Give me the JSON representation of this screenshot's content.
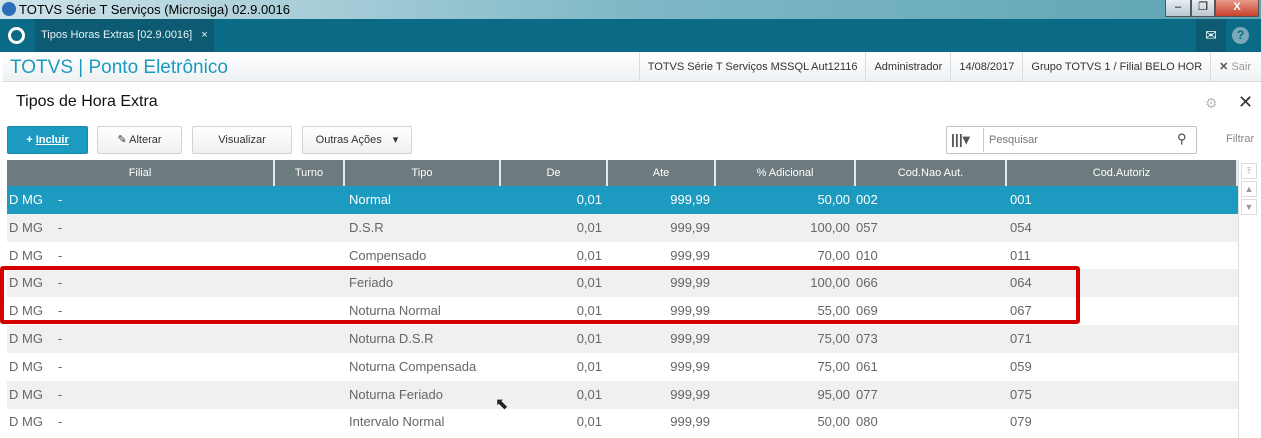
{
  "window": {
    "title": "TOTVS Série T Serviços (Microsiga) 02.9.0016",
    "minimize": "–",
    "restore": "❐",
    "close": "X"
  },
  "appbar": {
    "tab_label": "Tipos Horas Extras [02.9.0016]",
    "tab_close": "×",
    "mail_icon": "✉",
    "help_icon": "?"
  },
  "module": {
    "title": "TOTVS | Ponto Eletrônico",
    "environment": "TOTVS Série T Serviços MSSQL Aut12116",
    "user": "Administrador",
    "date": "14/08/2017",
    "branch": "Grupo TOTVS 1 / Filial BELO HOR",
    "exit": "Sair"
  },
  "page": {
    "title": "Tipos de Hora Extra"
  },
  "toolbar": {
    "incluir": "Incluir",
    "alterar": "Alterar",
    "visualizar": "Visualizar",
    "outras": "Outras Ações",
    "search_placeholder": "Pesquisar",
    "filtrar": "Filtrar"
  },
  "table": {
    "columns": [
      "Filial",
      "Turno",
      "Tipo",
      "De",
      "Ate",
      "% Adicional",
      "Cod.Nao Aut.",
      "Cod.Autoriz"
    ],
    "rows": [
      {
        "filial": "D MG",
        "turno": "-",
        "tipo": "Normal",
        "de": "0,01",
        "ate": "999,99",
        "adicional": "50,00",
        "nao_aut": "002",
        "autoriz": "001"
      },
      {
        "filial": "D MG",
        "turno": "-",
        "tipo": "D.S.R",
        "de": "0,01",
        "ate": "999,99",
        "adicional": "100,00",
        "nao_aut": "057",
        "autoriz": "054"
      },
      {
        "filial": "D MG",
        "turno": "-",
        "tipo": "Compensado",
        "de": "0,01",
        "ate": "999,99",
        "adicional": "70,00",
        "nao_aut": "010",
        "autoriz": "011"
      },
      {
        "filial": "D MG",
        "turno": "-",
        "tipo": "Feriado",
        "de": "0,01",
        "ate": "999,99",
        "adicional": "100,00",
        "nao_aut": "066",
        "autoriz": "064"
      },
      {
        "filial": "D MG",
        "turno": "-",
        "tipo": "Noturna Normal",
        "de": "0,01",
        "ate": "999,99",
        "adicional": "55,00",
        "nao_aut": "069",
        "autoriz": "067"
      },
      {
        "filial": "D MG",
        "turno": "-",
        "tipo": "Noturna D.S.R",
        "de": "0,01",
        "ate": "999,99",
        "adicional": "75,00",
        "nao_aut": "073",
        "autoriz": "071"
      },
      {
        "filial": "D MG",
        "turno": "-",
        "tipo": "Noturna Compensada",
        "de": "0,01",
        "ate": "999,99",
        "adicional": "75,00",
        "nao_aut": "061",
        "autoriz": "059"
      },
      {
        "filial": "D MG",
        "turno": "-",
        "tipo": "Noturna Feriado",
        "de": "0,01",
        "ate": "999,99",
        "adicional": "95,00",
        "nao_aut": "077",
        "autoriz": "075"
      },
      {
        "filial": "D MG",
        "turno": "-",
        "tipo": "Intervalo Normal",
        "de": "0,01",
        "ate": "999,99",
        "adicional": "50,00",
        "nao_aut": "080",
        "autoriz": "079"
      }
    ],
    "selected_row": 0
  },
  "colors": {
    "accent": "#1d9ac0",
    "appbar": "#0b6b86",
    "header": "#6d7b7f",
    "highlight": "#d40000"
  }
}
